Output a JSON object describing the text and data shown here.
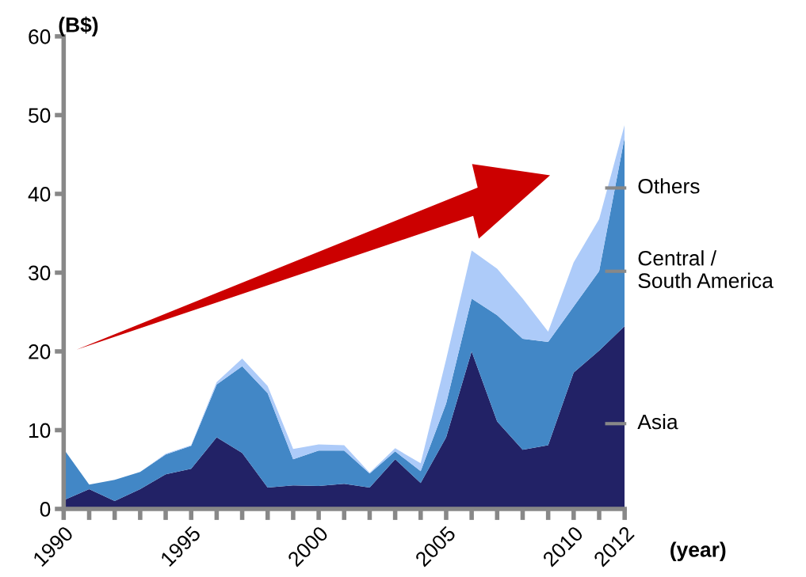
{
  "chart_data": {
    "type": "area",
    "stacked": true,
    "ylabel": "(B$)",
    "xlabel": "(year)",
    "x": [
      1990,
      1991,
      1992,
      1993,
      1994,
      1995,
      1996,
      1997,
      1998,
      1999,
      2000,
      2001,
      2002,
      2003,
      2004,
      2005,
      2006,
      2007,
      2008,
      2009,
      2010,
      2011,
      2012
    ],
    "series": [
      {
        "name": "Asia",
        "color": "#222266",
        "values": [
          1.1,
          2.5,
          1.0,
          2.5,
          4.4,
          5.1,
          9.1,
          7.1,
          2.7,
          3.0,
          2.9,
          3.2,
          2.7,
          6.3,
          3.3,
          9.1,
          20.0,
          11.1,
          7.5,
          8.1,
          17.3,
          20.1,
          23.2
        ]
      },
      {
        "name": "Central / South America",
        "color": "#4287c6",
        "values": [
          6.5,
          0.6,
          2.7,
          2.2,
          2.5,
          2.9,
          6.7,
          11.0,
          12.0,
          3.3,
          4.5,
          4.2,
          1.8,
          1.0,
          1.5,
          4.3,
          6.7,
          13.5,
          14.1,
          13.1,
          8.4,
          10.1,
          24.0
        ]
      },
      {
        "name": "Others",
        "color": "#adcbf9",
        "values": [
          0,
          0,
          0,
          0,
          0.1,
          0.1,
          0.3,
          1.0,
          0.9,
          1.3,
          0.8,
          0.7,
          0.1,
          0.4,
          1.0,
          5.6,
          6.1,
          5.9,
          5.1,
          1.3,
          5.6,
          6.6,
          1.6
        ]
      }
    ],
    "xlim": [
      1990,
      2012
    ],
    "xticks": [
      1990,
      {
        "value": 1991,
        "label": null
      },
      {
        "value": 1992,
        "label": null
      },
      {
        "value": 1993,
        "label": null
      },
      {
        "value": 1994,
        "label": null
      },
      1995,
      {
        "value": 1996,
        "label": null
      },
      {
        "value": 1997,
        "label": null
      },
      {
        "value": 1998,
        "label": null
      },
      {
        "value": 1999,
        "label": null
      },
      2000,
      {
        "value": 2001,
        "label": null
      },
      {
        "value": 2002,
        "label": null
      },
      {
        "value": 2003,
        "label": null
      },
      {
        "value": 2004,
        "label": null
      },
      2005,
      {
        "value": 2006,
        "label": null
      },
      {
        "value": 2007,
        "label": null
      },
      {
        "value": 2008,
        "label": null
      },
      {
        "value": 2009,
        "label": null
      },
      2010,
      {
        "value": 2011,
        "label": null
      },
      2012
    ],
    "ylim": [
      0,
      60
    ],
    "yticks": [
      0,
      10,
      20,
      30,
      40,
      50,
      60
    ],
    "grid": false,
    "legend": false
  }
}
